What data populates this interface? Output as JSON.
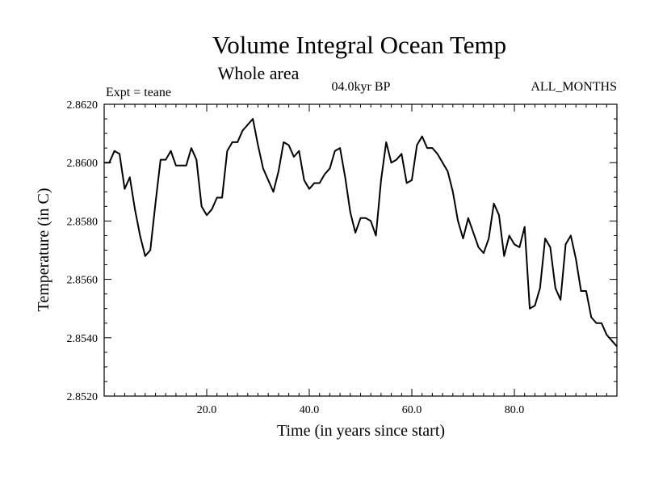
{
  "chart_data": {
    "type": "line",
    "title": "Volume Integral Ocean Temp",
    "subtitle": "Whole area",
    "experiment_label": "Expt = teane",
    "period_label": "04.0kyr BP",
    "months_label": "ALL_MONTHS",
    "xlabel": "Time (in years since start)",
    "ylabel": "Temperature (in C)",
    "xlim": [
      0,
      100
    ],
    "ylim": [
      2.852,
      2.862
    ],
    "xticks": [
      20,
      40,
      60,
      80
    ],
    "xtick_labels": [
      "20.0",
      "40.0",
      "60.0",
      "80.0"
    ],
    "yticks": [
      2.852,
      2.854,
      2.856,
      2.858,
      2.86,
      2.862
    ],
    "ytick_labels": [
      "2.8520",
      "2.8540",
      "2.8560",
      "2.8580",
      "2.8600",
      "2.8620"
    ],
    "series": [
      {
        "name": "Volume Integral Ocean Temp",
        "x": [
          0,
          1,
          2,
          3,
          4,
          5,
          6,
          7,
          8,
          9,
          10,
          11,
          12,
          13,
          14,
          15,
          16,
          17,
          18,
          19,
          20,
          21,
          22,
          23,
          24,
          25,
          26,
          27,
          28,
          29,
          30,
          31,
          32,
          33,
          34,
          35,
          36,
          37,
          38,
          39,
          40,
          41,
          42,
          43,
          44,
          45,
          46,
          47,
          48,
          49,
          50,
          51,
          52,
          53,
          54,
          55,
          56,
          57,
          58,
          59,
          60,
          61,
          62,
          63,
          64,
          65,
          66,
          67,
          68,
          69,
          70,
          71,
          72,
          73,
          74,
          75,
          76,
          77,
          78,
          79,
          80,
          81,
          82,
          83,
          84,
          85,
          86,
          87,
          88,
          89,
          90,
          91,
          92,
          93,
          94,
          95,
          96,
          97,
          98,
          99,
          100
        ],
        "values": [
          2.86,
          2.86,
          2.8604,
          2.8603,
          2.8591,
          2.8595,
          2.8584,
          2.8575,
          2.8568,
          2.857,
          2.8586,
          2.8601,
          2.8601,
          2.8604,
          2.8599,
          2.8599,
          2.8599,
          2.8605,
          2.8601,
          2.8585,
          2.8582,
          2.8584,
          2.8588,
          2.8588,
          2.8604,
          2.8607,
          2.8607,
          2.8611,
          2.8613,
          2.8615,
          2.8606,
          2.8598,
          2.8594,
          2.859,
          2.8597,
          2.8607,
          2.8606,
          2.8602,
          2.8604,
          2.8594,
          2.8591,
          2.8593,
          2.8593,
          2.8596,
          2.8598,
          2.8604,
          2.8605,
          2.8595,
          2.8583,
          2.8576,
          2.8581,
          2.8581,
          2.858,
          2.8575,
          2.8594,
          2.8607,
          2.86,
          2.8601,
          2.8603,
          2.8593,
          2.8594,
          2.8606,
          2.8609,
          2.8605,
          2.8605,
          2.8603,
          2.86,
          2.8597,
          2.859,
          2.858,
          2.8574,
          2.8581,
          2.8576,
          2.8571,
          2.8569,
          2.8574,
          2.8586,
          2.8582,
          2.8568,
          2.8575,
          2.8572,
          2.8571,
          2.8578,
          2.855,
          2.8551,
          2.8557,
          2.8574,
          2.8571,
          2.8557,
          2.8553,
          2.8572,
          2.8575,
          2.8567,
          2.8556,
          2.8556,
          2.8547,
          2.8545,
          2.8545,
          2.8541,
          2.8539,
          2.8537
        ]
      }
    ]
  }
}
